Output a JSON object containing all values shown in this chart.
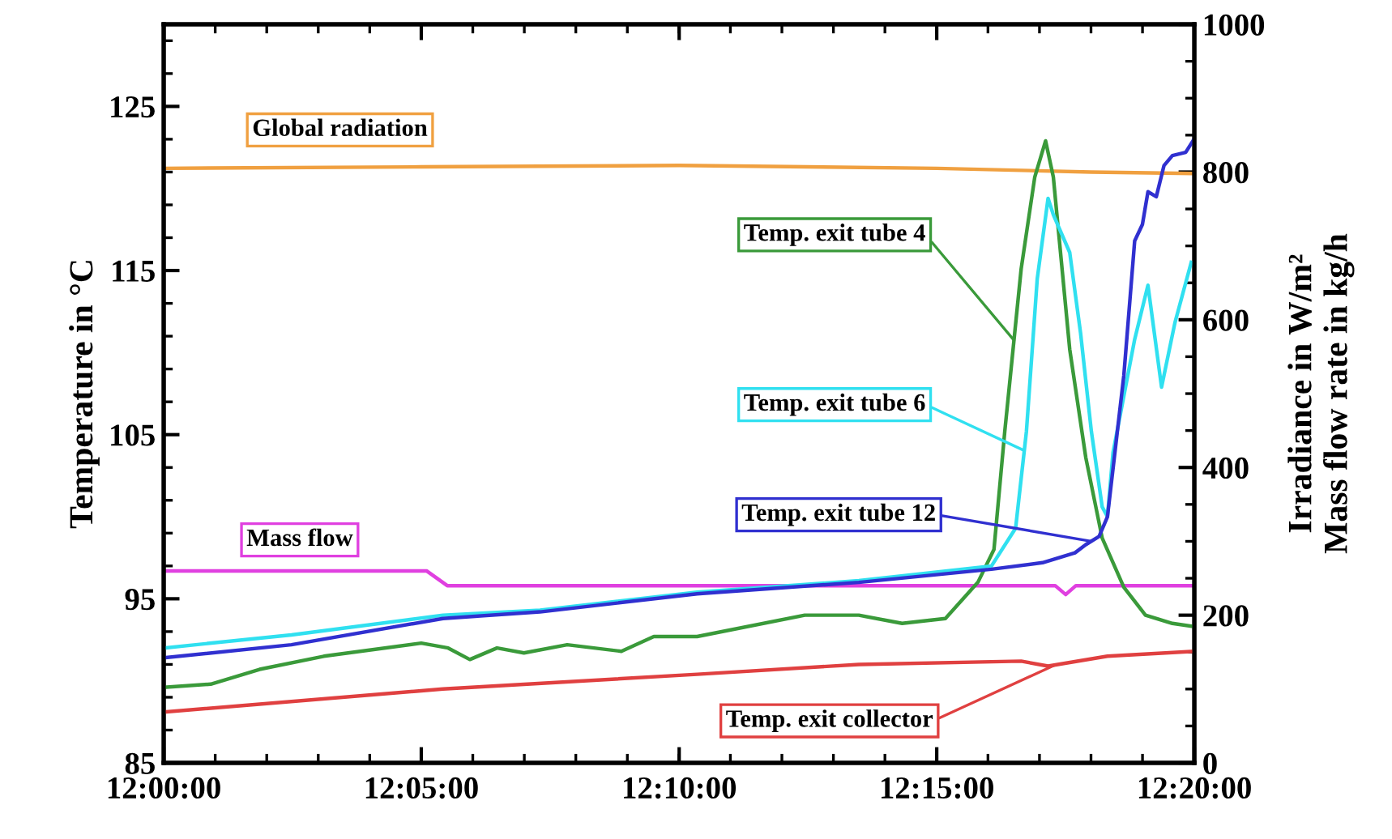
{
  "chart_data": {
    "type": "line",
    "xlim": [
      12,
      12.3333
    ],
    "xticks": [
      {
        "value": 12,
        "label": "12:00:00"
      },
      {
        "value": 12.0833,
        "label": "12:05:00"
      },
      {
        "value": 12.1667,
        "label": "12:10:00"
      },
      {
        "value": 12.25,
        "label": "12:15:00"
      },
      {
        "value": 12.3333,
        "label": "12:20:00"
      }
    ],
    "ylim": [
      85,
      130
    ],
    "yticks": [
      85,
      95,
      105,
      115,
      125
    ],
    "y2lim": [
      0,
      1000
    ],
    "y2ticks": [
      0,
      200,
      400,
      600,
      800,
      1000
    ],
    "ylabel": "Temperature in °C",
    "y2label": "Irradiance in W/m²\nMass flow rate in kg/h",
    "grid": false,
    "legend": false,
    "marker": "none",
    "line_style": "solid",
    "series": [
      {
        "name": "Global radiation",
        "color": "#f0a040",
        "axis": "y2",
        "x": [
          12,
          12.0833,
          12.1667,
          12.25,
          12.3,
          12.3333
        ],
        "values": [
          805,
          807,
          809,
          805,
          800,
          798
        ]
      },
      {
        "name": "Mass flow",
        "color": "#e040e0",
        "axis": "y2",
        "x": [
          12,
          12.085,
          12.0917,
          12.2883,
          12.2917,
          12.295,
          12.3333
        ],
        "values": [
          260,
          260,
          240,
          240,
          228,
          240,
          240
        ]
      },
      {
        "name": "Temp. exit tube 4",
        "color": "#3a9a3a",
        "x": [
          12,
          12.0152,
          12.031,
          12.0518,
          12.0833,
          12.092,
          12.099,
          12.1078,
          12.1165,
          12.1305,
          12.148,
          12.1585,
          12.1725,
          12.2073,
          12.2248,
          12.2388,
          12.2528,
          12.2633,
          12.2685,
          12.272,
          12.2773,
          12.2817,
          12.2852,
          12.2877,
          12.293,
          12.2982,
          12.3035,
          12.3105,
          12.3175,
          12.3262,
          12.3333
        ],
        "values": [
          89.6,
          89.8,
          90.7,
          91.5,
          92.3,
          92.0,
          91.3,
          92.0,
          91.7,
          92.2,
          91.8,
          92.7,
          92.7,
          94.0,
          94.0,
          93.5,
          93.8,
          96.0,
          98.0,
          105.2,
          115.1,
          120.7,
          122.9,
          120.7,
          110.2,
          103.6,
          98.7,
          95.7,
          94.0,
          93.5,
          93.3
        ]
      },
      {
        "name": "Temp. exit tube 6",
        "color": "#30e0f0",
        "x": [
          12,
          12.0413,
          12.0903,
          12.1217,
          12.1725,
          12.2248,
          12.2677,
          12.2755,
          12.279,
          12.2825,
          12.286,
          12.2877,
          12.293,
          12.2965,
          12.3,
          12.3035,
          12.3052,
          12.307,
          12.314,
          12.3183,
          12.3227,
          12.327,
          12.3323
        ],
        "values": [
          92.0,
          92.8,
          94.0,
          94.3,
          95.4,
          96.1,
          97.0,
          99.3,
          105.2,
          114.5,
          119.4,
          118.4,
          116.1,
          111.2,
          105.2,
          100.6,
          100.0,
          103.9,
          110.8,
          114.1,
          107.9,
          111.8,
          115.5
        ]
      },
      {
        "name": "Temp. exit tube 12",
        "color": "#3030d0",
        "x": [
          12,
          12.0413,
          12.0903,
          12.1217,
          12.1725,
          12.2248,
          12.2677,
          12.2842,
          12.2947,
          12.2982,
          12.3025,
          12.3052,
          12.3105,
          12.314,
          12.3165,
          12.3183,
          12.321,
          12.3235,
          12.3262,
          12.3305,
          12.3332
        ],
        "values": [
          91.4,
          92.2,
          93.8,
          94.2,
          95.3,
          96.0,
          96.8,
          97.2,
          97.8,
          98.3,
          98.8,
          100.0,
          108.6,
          116.8,
          117.8,
          119.8,
          119.5,
          121.4,
          122.0,
          122.2,
          123.0
        ]
      },
      {
        "name": "Temp. exit collector",
        "color": "#e04040",
        "x": [
          12,
          12.0903,
          12.1725,
          12.2248,
          12.2773,
          12.286,
          12.3052,
          12.3333
        ],
        "values": [
          88.1,
          89.5,
          90.4,
          91.0,
          91.2,
          90.9,
          91.5,
          91.8
        ]
      }
    ]
  }
}
